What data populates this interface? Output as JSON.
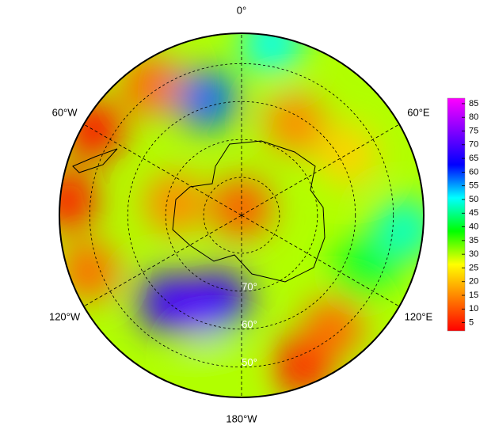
{
  "chart_data": {
    "type": "polar-map",
    "latlim": [
      -90,
      -42
    ],
    "lon_labels": [
      {
        "value": 0,
        "label": "0°"
      },
      {
        "value": 60,
        "label": "60°E"
      },
      {
        "value": 120,
        "label": "120°E"
      },
      {
        "value": 180,
        "label": "180°W"
      },
      {
        "value": -120,
        "label": "120°W"
      },
      {
        "value": -60,
        "label": "60°W"
      }
    ],
    "lat_labels": [
      {
        "value": -70,
        "label": "70°"
      },
      {
        "value": -60,
        "label": "60°"
      },
      {
        "value": -50,
        "label": "50°"
      }
    ],
    "lat_circles": [
      -80,
      -70,
      -60,
      -50
    ],
    "base_value": 30,
    "field": [
      {
        "lon": 0,
        "lat": -88,
        "value": 10
      },
      {
        "lon": -80,
        "lat": -72,
        "value": 15
      },
      {
        "lon": 30,
        "lat": -62,
        "value": 15
      },
      {
        "lon": 60,
        "lat": -58,
        "value": 22
      },
      {
        "lon": -17,
        "lat": -58,
        "value": 58
      },
      {
        "lon": 10,
        "lat": -44,
        "value": 50
      },
      {
        "lon": -60,
        "lat": -45,
        "value": 3
      },
      {
        "lon": -85,
        "lat": -44,
        "value": 4
      },
      {
        "lon": -35,
        "lat": -48,
        "value": 12
      },
      {
        "lon": -110,
        "lat": -47,
        "value": 12
      },
      {
        "lon": -154,
        "lat": -63,
        "value": 82
      },
      {
        "lon": -140,
        "lat": -60,
        "value": 68
      },
      {
        "lon": -165,
        "lat": -67,
        "value": 68
      },
      {
        "lon": 158,
        "lat": -47,
        "value": 5
      },
      {
        "lon": 140,
        "lat": -52,
        "value": 12
      },
      {
        "lon": 95,
        "lat": -47,
        "value": 48
      },
      {
        "lon": 115,
        "lat": -55,
        "value": 40
      },
      {
        "lon": -170,
        "lat": -50,
        "value": 30
      }
    ],
    "colorbar": {
      "range": [
        2,
        87
      ],
      "ticks": [
        5,
        10,
        15,
        20,
        25,
        30,
        35,
        40,
        45,
        50,
        55,
        60,
        65,
        70,
        75,
        80,
        85
      ],
      "colors": [
        "#ff0000",
        "#ff8000",
        "#ffff00",
        "#00ff00",
        "#00ffff",
        "#0000ff",
        "#8000ff",
        "#ff00ff"
      ]
    }
  }
}
